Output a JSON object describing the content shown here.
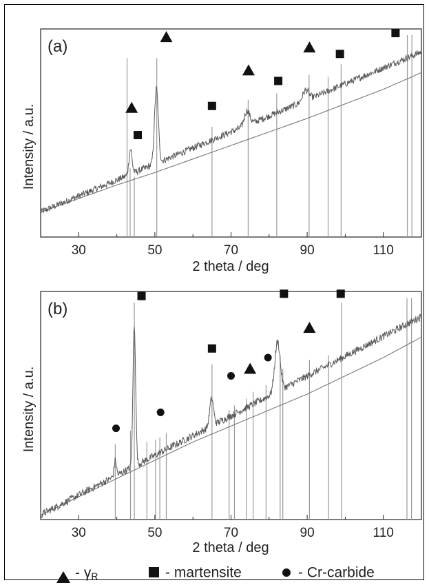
{
  "legend": {
    "items": [
      {
        "marker": "triangle",
        "label": "- γ",
        "sub": "R"
      },
      {
        "marker": "square",
        "label": "- martensite"
      },
      {
        "marker": "circle",
        "label": "- Cr-carbide"
      }
    ]
  },
  "colors": {
    "spectrum": "#5a5a5a",
    "reference": "#999999",
    "marker": "#111111"
  },
  "chart_data": [
    {
      "type": "line",
      "panel_label": "(a)",
      "xlabel": "2 theta / deg",
      "ylabel": "Intensity / a.u.",
      "xlim": [
        20,
        120
      ],
      "ylim": [
        0,
        100
      ],
      "xticks": [
        30,
        50,
        70,
        90,
        110
      ],
      "grid": false,
      "baseline": {
        "x": [
          20,
          30,
          40,
          50,
          60,
          70,
          80,
          90,
          100,
          110,
          120
        ],
        "y": [
          12,
          18.5,
          25,
          31,
          37.5,
          44,
          50.5,
          57,
          64,
          71,
          79
        ]
      },
      "trend": {
        "x": [
          20,
          120
        ],
        "y": [
          12,
          89
        ]
      },
      "peaks": [
        {
          "x": 43.6,
          "height": 12,
          "width": 0.4
        },
        {
          "x": 50.4,
          "height": 36,
          "width": 0.5
        },
        {
          "x": 74.2,
          "height": 7,
          "width": 0.7
        },
        {
          "x": 89.6,
          "height": 5,
          "width": 0.8
        }
      ],
      "reference_lines": [
        {
          "x": 42.7,
          "top": 86
        },
        {
          "x": 43.5,
          "top": 33
        },
        {
          "x": 44.6,
          "top": 29
        },
        {
          "x": 50.5,
          "top": 86
        },
        {
          "x": 65.0,
          "top": 53
        },
        {
          "x": 74.5,
          "top": 66
        },
        {
          "x": 82.0,
          "top": 69
        },
        {
          "x": 90.5,
          "top": 78
        },
        {
          "x": 95.5,
          "top": 77
        },
        {
          "x": 98.9,
          "top": 83
        },
        {
          "x": 116.3,
          "top": 97
        },
        {
          "x": 117.5,
          "top": 97
        }
      ],
      "markers": [
        {
          "type": "triangle",
          "x": 43.9,
          "y": 62
        },
        {
          "type": "square",
          "x": 45.5,
          "y": 49
        },
        {
          "type": "triangle",
          "x": 53.0,
          "y": 96
        },
        {
          "type": "square",
          "x": 65.0,
          "y": 63
        },
        {
          "type": "triangle",
          "x": 74.6,
          "y": 80
        },
        {
          "type": "square",
          "x": 82.4,
          "y": 75
        },
        {
          "type": "triangle",
          "x": 90.6,
          "y": 91
        },
        {
          "type": "square",
          "x": 98.6,
          "y": 88
        },
        {
          "type": "square",
          "x": 113.2,
          "y": 98
        }
      ]
    },
    {
      "type": "line",
      "panel_label": "(b)",
      "xlabel": "2 theta / deg",
      "ylabel": "Intensity / a.u.",
      "xlim": [
        20,
        120
      ],
      "ylim": [
        0,
        100
      ],
      "xticks": [
        30,
        50,
        70,
        90,
        110
      ],
      "grid": false,
      "baseline": {
        "x": [
          20,
          30,
          40,
          50,
          60,
          70,
          80,
          90,
          100,
          110,
          120
        ],
        "y": [
          2,
          10,
          18,
          26,
          34,
          41,
          48,
          55,
          63,
          71,
          80
        ]
      },
      "trend": {
        "x": [
          20,
          120
        ],
        "y": [
          2,
          89
        ]
      },
      "peaks": [
        {
          "x": 39.6,
          "height": 7,
          "width": 0.3
        },
        {
          "x": 44.6,
          "height": 62,
          "width": 0.35
        },
        {
          "x": 64.9,
          "height": 12,
          "width": 0.5
        },
        {
          "x": 82.2,
          "height": 22,
          "width": 0.7
        }
      ],
      "reference_lines": [
        {
          "x": 39.6,
          "top": 33
        },
        {
          "x": 43.6,
          "top": 39
        },
        {
          "x": 44.6,
          "top": 95
        },
        {
          "x": 47.9,
          "top": 34
        },
        {
          "x": 50.2,
          "top": 35
        },
        {
          "x": 51.3,
          "top": 36
        },
        {
          "x": 53.0,
          "top": 38
        },
        {
          "x": 65.0,
          "top": 68
        },
        {
          "x": 69.5,
          "top": 48
        },
        {
          "x": 70.9,
          "top": 50
        },
        {
          "x": 74.0,
          "top": 53
        },
        {
          "x": 75.8,
          "top": 56
        },
        {
          "x": 79.2,
          "top": 59
        },
        {
          "x": 82.9,
          "top": 72
        },
        {
          "x": 83.6,
          "top": 66
        },
        {
          "x": 90.6,
          "top": 70
        },
        {
          "x": 95.6,
          "top": 72
        },
        {
          "x": 99.0,
          "top": 95
        },
        {
          "x": 116.2,
          "top": 97
        },
        {
          "x": 117.4,
          "top": 97
        }
      ],
      "markers": [
        {
          "type": "circle",
          "x": 39.8,
          "y": 40
        },
        {
          "type": "square",
          "x": 46.5,
          "y": 98
        },
        {
          "type": "circle",
          "x": 51.5,
          "y": 47
        },
        {
          "type": "square",
          "x": 65.0,
          "y": 75
        },
        {
          "type": "circle",
          "x": 70.0,
          "y": 63
        },
        {
          "type": "triangle",
          "x": 75.0,
          "y": 66
        },
        {
          "type": "circle",
          "x": 79.7,
          "y": 71
        },
        {
          "type": "square",
          "x": 83.9,
          "y": 99
        },
        {
          "type": "triangle",
          "x": 90.6,
          "y": 84
        },
        {
          "type": "square",
          "x": 98.8,
          "y": 99
        }
      ]
    }
  ]
}
